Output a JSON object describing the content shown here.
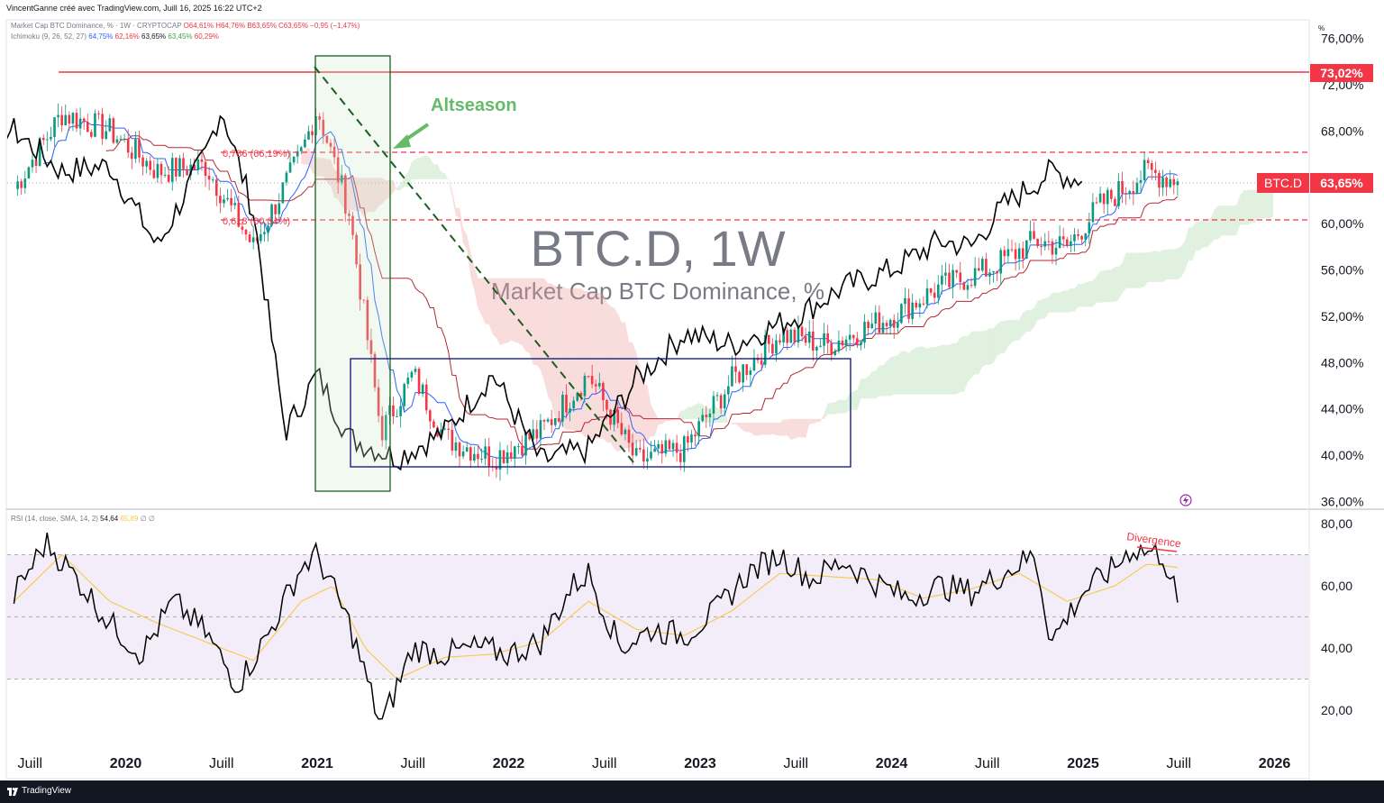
{
  "header": {
    "attribution": "VincentGanne créé avec TradingView.com, Juill 16, 2025 16:22 UTC+2"
  },
  "legend": {
    "main_name": "Market Cap BTC Dominance, % · 1W · CRYPTOCAP",
    "ohlc": "O64,61% H64,76% B63,65% C63,65% −0,95 (−1,47%)",
    "ichimoku_name": "Ichimoku (9, 26, 52, 27)",
    "ichimoku_values": [
      "64,75%",
      "62,16%",
      "63,65%",
      "63,45%",
      "60,29%"
    ],
    "rsi_name": "RSI (14, close, SMA, 14, 2)",
    "rsi_values": [
      "54,64",
      "65,89",
      "∅",
      "∅"
    ]
  },
  "unit_label": "%",
  "watermark": {
    "title": "BTC.D, 1W",
    "subtitle": "Market Cap BTC Dominance, %"
  },
  "annotations": {
    "altseason": "Altseason",
    "fib_786": "0,786 (66,19%)",
    "fib_618": "0,618 (60,34%)",
    "divergence": "Divergence"
  },
  "price_badges": {
    "resistance": "73,02%",
    "symbol": "BTC.D",
    "last": "63,65%"
  },
  "footer": {
    "brand": "TradingView"
  },
  "colors": {
    "up": "#089981",
    "down": "#f23645",
    "tenkan": "#2962ff",
    "kijun": "#b22833",
    "cloud_bull": "#a5d6a7",
    "cloud_bear": "#ef9a9a",
    "lagging": "#000000",
    "rsi": "#000000",
    "rsi_ma": "#f7c948",
    "resistance": "#f23645",
    "box": "#1a237e",
    "altseason_box": "#1b5e20",
    "altseason_text": "#66bb6a"
  },
  "chart_data": [
    {
      "type": "candlestick",
      "title": "BTC.D, 1W",
      "subtitle": "Market Cap BTC Dominance, %",
      "ylim": [
        36,
        76
      ],
      "y_ticks": [
        "36,00%",
        "40,00%",
        "44,00%",
        "48,00%",
        "52,00%",
        "56,00%",
        "60,00%",
        "64,00%",
        "68,00%",
        "72,00%",
        "76,00%"
      ],
      "x_ticks": [
        "Juill",
        "2020",
        "Juill",
        "2021",
        "Juill",
        "2022",
        "Juill",
        "2023",
        "Juill",
        "2024",
        "Juill",
        "2025",
        "Juill",
        "2026"
      ],
      "last_close": 63.65,
      "horizontal_lines": [
        {
          "label": "73,02%",
          "value": 73.02,
          "style": "solid"
        },
        {
          "label": "0,786 (66,19%)",
          "value": 66.19,
          "style": "dashed"
        },
        {
          "label": "0,618 (60,34%)",
          "value": 60.34,
          "style": "dashed"
        }
      ],
      "close_path": [
        [
          "2019-06",
          63.0
        ],
        [
          "2019-09",
          69.5
        ],
        [
          "2019-12",
          68.0
        ],
        [
          "2020-03",
          64.5
        ],
        [
          "2020-06",
          65.0
        ],
        [
          "2020-09",
          58.0
        ],
        [
          "2020-12",
          66.0
        ],
        [
          "2021-01",
          70.0
        ],
        [
          "2021-03",
          61.0
        ],
        [
          "2021-05",
          42.0
        ],
        [
          "2021-07",
          47.0
        ],
        [
          "2021-09",
          41.5
        ],
        [
          "2021-12",
          39.8
        ],
        [
          "2022-03",
          42.0
        ],
        [
          "2022-06",
          47.0
        ],
        [
          "2022-09",
          39.5
        ],
        [
          "2022-12",
          40.5
        ],
        [
          "2023-03",
          46.5
        ],
        [
          "2023-06",
          50.5
        ],
        [
          "2023-09",
          49.5
        ],
        [
          "2024-01",
          52.0
        ],
        [
          "2024-04",
          54.5
        ],
        [
          "2024-07",
          56.0
        ],
        [
          "2024-10",
          58.5
        ],
        [
          "2024-12",
          58.0
        ],
        [
          "2025-02",
          61.5
        ],
        [
          "2025-05",
          64.5
        ],
        [
          "2025-07",
          63.65
        ]
      ]
    },
    {
      "type": "line",
      "title": "RSI (14, close, SMA, 14, 2)",
      "ylim": [
        10,
        82
      ],
      "y_ticks": [
        "20,00",
        "40,00",
        "60,00",
        "80,00"
      ],
      "bands": [
        30,
        50,
        70
      ],
      "last_value": 54.64,
      "ma_last_value": 65.89,
      "series": [
        {
          "name": "RSI",
          "points": [
            [
              "2019-06",
              57
            ],
            [
              "2019-08",
              74
            ],
            [
              "2019-10",
              62
            ],
            [
              "2019-12",
              48
            ],
            [
              "2020-02",
              38
            ],
            [
              "2020-04",
              55
            ],
            [
              "2020-06",
              45
            ],
            [
              "2020-08",
              28
            ],
            [
              "2020-10",
              45
            ],
            [
              "2020-12",
              66
            ],
            [
              "2021-01",
              70
            ],
            [
              "2021-03",
              48
            ],
            [
              "2021-05",
              15
            ],
            [
              "2021-07",
              40
            ],
            [
              "2021-09",
              38
            ],
            [
              "2021-11",
              40
            ],
            [
              "2022-01",
              38
            ],
            [
              "2022-03",
              42
            ],
            [
              "2022-05",
              60
            ],
            [
              "2022-06",
              64
            ],
            [
              "2022-08",
              40
            ],
            [
              "2022-10",
              46
            ],
            [
              "2022-12",
              44
            ],
            [
              "2023-02",
              52
            ],
            [
              "2023-04",
              64
            ],
            [
              "2023-06",
              70
            ],
            [
              "2023-08",
              62
            ],
            [
              "2023-10",
              68
            ],
            [
              "2023-12",
              61
            ],
            [
              "2024-02",
              56
            ],
            [
              "2024-04",
              60
            ],
            [
              "2024-06",
              58
            ],
            [
              "2024-08",
              64
            ],
            [
              "2024-10",
              70
            ],
            [
              "2024-11",
              42
            ],
            [
              "2025-01",
              58
            ],
            [
              "2025-03",
              66
            ],
            [
              "2025-04",
              72
            ],
            [
              "2025-06",
              70
            ],
            [
              "2025-07",
              54.64
            ]
          ]
        },
        {
          "name": "RSI-based MA",
          "points": [
            [
              "2019-06",
              55
            ],
            [
              "2019-09",
              70
            ],
            [
              "2019-12",
              55
            ],
            [
              "2020-03",
              48
            ],
            [
              "2020-06",
              42
            ],
            [
              "2020-09",
              36
            ],
            [
              "2020-12",
              55
            ],
            [
              "2021-02",
              60
            ],
            [
              "2021-04",
              40
            ],
            [
              "2021-06",
              30
            ],
            [
              "2021-09",
              37
            ],
            [
              "2021-12",
              38
            ],
            [
              "2022-03",
              42
            ],
            [
              "2022-06",
              55
            ],
            [
              "2022-09",
              46
            ],
            [
              "2022-12",
              44
            ],
            [
              "2023-03",
              52
            ],
            [
              "2023-06",
              64
            ],
            [
              "2023-09",
              63
            ],
            [
              "2023-12",
              62
            ],
            [
              "2024-03",
              56
            ],
            [
              "2024-06",
              59
            ],
            [
              "2024-09",
              64
            ],
            [
              "2024-12",
              55
            ],
            [
              "2025-03",
              60
            ],
            [
              "2025-05",
              67
            ],
            [
              "2025-07",
              65.89
            ]
          ]
        }
      ]
    }
  ]
}
